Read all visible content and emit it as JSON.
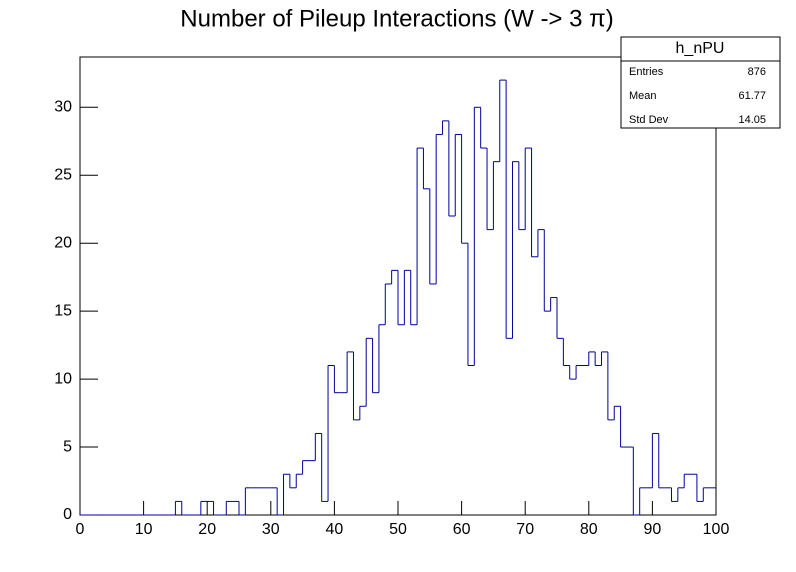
{
  "chart_data": {
    "type": "histogram",
    "title": "Number of Pileup Interactions (W -> 3  π)",
    "color": "#000099",
    "bins": [
      0,
      1,
      2,
      3,
      4,
      5,
      6,
      7,
      8,
      9,
      10,
      11,
      12,
      13,
      14,
      15,
      16,
      17,
      18,
      19,
      20,
      21,
      22,
      23,
      24,
      25,
      26,
      27,
      28,
      29,
      30,
      31,
      32,
      33,
      34,
      35,
      36,
      37,
      38,
      39,
      40,
      41,
      42,
      43,
      44,
      45,
      46,
      47,
      48,
      49,
      50,
      51,
      52,
      53,
      54,
      55,
      56,
      57,
      58,
      59,
      60,
      61,
      62,
      63,
      64,
      65,
      66,
      67,
      68,
      69,
      70,
      71,
      72,
      73,
      74,
      75,
      76,
      77,
      78,
      79,
      80,
      81,
      82,
      83,
      84,
      85,
      86,
      87,
      88,
      89,
      90,
      91,
      92,
      93,
      94,
      95,
      96,
      97,
      98,
      99,
      100
    ],
    "values": [
      0,
      0,
      0,
      0,
      0,
      0,
      0,
      0,
      0,
      0,
      0,
      0,
      0,
      0,
      0,
      1,
      0,
      0,
      0,
      1,
      1,
      0,
      0,
      1,
      1,
      0,
      2,
      2,
      2,
      2,
      2,
      0,
      3,
      2,
      3,
      4,
      4,
      6,
      1,
      11,
      9,
      9,
      12,
      7,
      8,
      13,
      9,
      14,
      17,
      18,
      14,
      18,
      14,
      27,
      24,
      17,
      28,
      29,
      22,
      28,
      20,
      11,
      30,
      27,
      21,
      26,
      32,
      13,
      26,
      21,
      27,
      19,
      21,
      15,
      16,
      13,
      11,
      10,
      11,
      11,
      12,
      11,
      12,
      7,
      8,
      5,
      5,
      0,
      2,
      2,
      6,
      2,
      2,
      1,
      2,
      3,
      3,
      1,
      2,
      2
    ],
    "xlim": [
      0,
      100
    ],
    "xticks": [
      0,
      10,
      20,
      30,
      40,
      50,
      60,
      70,
      80,
      90,
      100
    ],
    "ylim": [
      0,
      33.7
    ],
    "yticks": [
      0,
      5,
      10,
      15,
      20,
      25,
      30
    ],
    "stats": {
      "title": "h_nPU",
      "rows": [
        [
          "Entries",
          "876"
        ],
        [
          "Mean",
          "61.77"
        ],
        [
          "Std Dev",
          "14.05"
        ]
      ]
    }
  }
}
